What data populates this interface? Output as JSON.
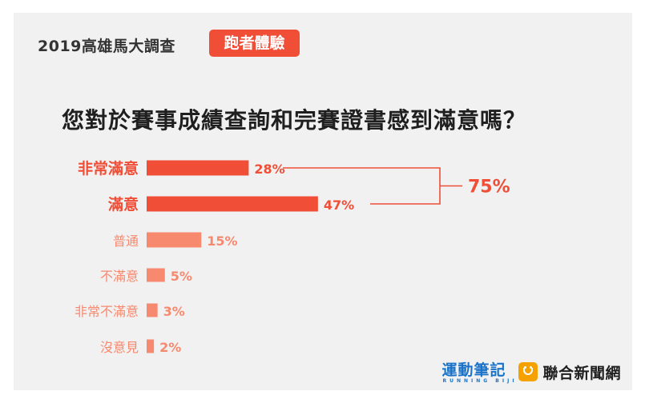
{
  "header": {
    "survey_title": "2019高雄馬大調查",
    "topic_badge": "跑者體驗"
  },
  "question": "您對於賽事成績查詢和完賽證書感到滿意嗎？",
  "colors": {
    "accent": "#f04e37",
    "bar_light": "#f7896f",
    "card_bg": "#f1f1f1",
    "text_dark": "#1f1f1f"
  },
  "chart_data": {
    "type": "bar",
    "orientation": "horizontal",
    "categories": [
      "非常滿意",
      "滿意",
      "普通",
      "不滿意",
      "非常不滿意",
      "沒意見"
    ],
    "values": [
      28,
      47,
      15,
      5,
      3,
      2
    ],
    "value_labels": [
      "28%",
      "47%",
      "15%",
      "5%",
      "3%",
      "2%"
    ],
    "unit": "%",
    "highlighted": [
      "非常滿意",
      "滿意"
    ],
    "bracket": {
      "covers": [
        "非常滿意",
        "滿意"
      ],
      "label": "75%"
    }
  },
  "footer": {
    "logo1_name": "運動筆記",
    "logo1_sub": "RUNNING BIJI",
    "logo2_name": "聯合新聞網",
    "logo2_icon": "udn-smile-icon"
  }
}
